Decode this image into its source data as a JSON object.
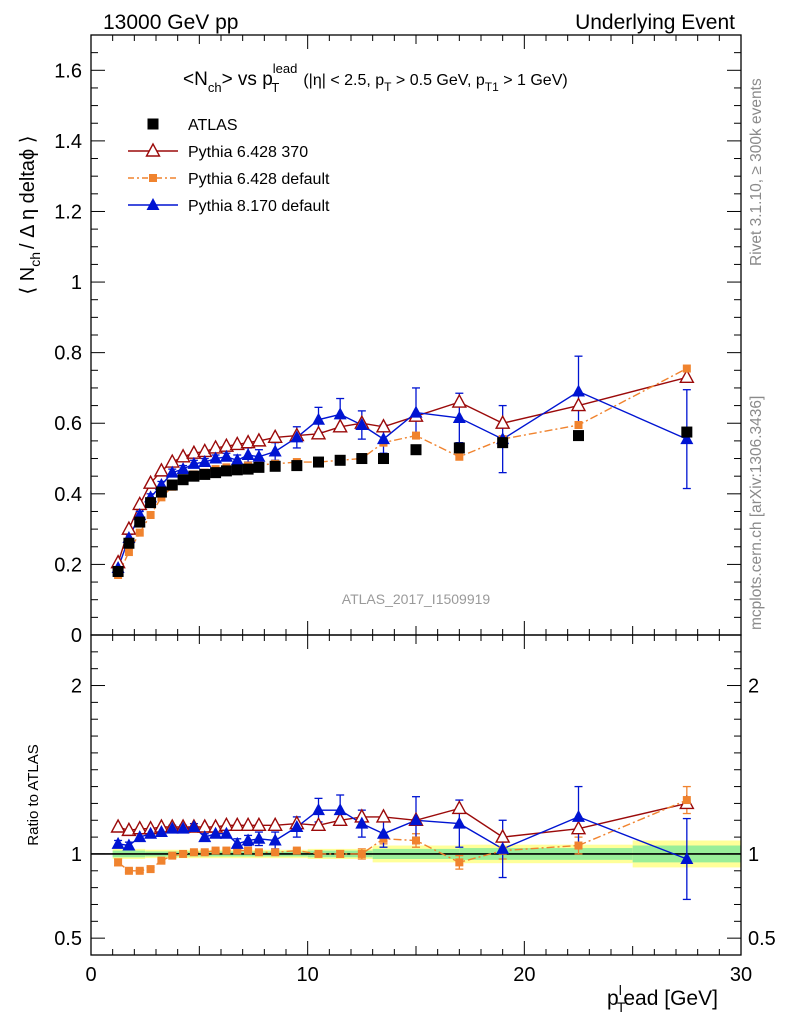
{
  "header": {
    "left": "13000 GeV pp",
    "right": "Underlying Event"
  },
  "side_labels": {
    "rivet": "Rivet 3.1.10, ≥ 300k events",
    "mcplots": "mcplots.cern.ch [arXiv:1306.3436]"
  },
  "watermark": "ATLAS_2017_I1509919",
  "title": {
    "main": "<N",
    "main_sub": "ch",
    "mid": "> vs p",
    "mid_sup": "lead",
    "mid_sub": "T",
    "cuts_a": "(|η| < 2.5, p",
    "cuts_a_sub": "T",
    "cuts_b": " > 0.5 GeV, p",
    "cuts_b_sub": "T1",
    "cuts_c": " > 1 GeV)"
  },
  "yaxis_main": {
    "pre": "⟨ N",
    "sub": "ch",
    "post": "/ Δ η deltaϕ ⟩"
  },
  "yaxis_ratio": "Ratio to ATLAS",
  "xaxis": {
    "pre": "p",
    "sup": "l",
    "sub": "T",
    "post": "ead [GeV]"
  },
  "chart_data": {
    "type": "scatter",
    "xlim": [
      0,
      30
    ],
    "main_ylim": [
      0,
      1.7
    ],
    "ratio_ylim": [
      0.4,
      2.3
    ],
    "main_yticks": [
      "0.2",
      "0.4",
      "0.6",
      "0.8",
      "1",
      "1.2",
      "1.4",
      "1.6"
    ],
    "main_ytick_values": [
      0.2,
      0.4,
      0.6,
      0.8,
      1.0,
      1.2,
      1.4,
      1.6
    ],
    "ratio_yticks": [
      "0.5",
      "1",
      "2"
    ],
    "ratio_ytick_values": [
      0.5,
      1.0,
      2.0
    ],
    "xticks": [
      "0",
      "10",
      "20",
      "30"
    ],
    "xtick_values": [
      0,
      10,
      20,
      30
    ],
    "legend_position": "top-left",
    "series": [
      {
        "name": "ATLAS",
        "style": "data",
        "color": "#000000",
        "x": [
          1.25,
          1.75,
          2.25,
          2.75,
          3.25,
          3.75,
          4.25,
          4.75,
          5.25,
          5.75,
          6.25,
          6.75,
          7.25,
          7.75,
          8.5,
          9.5,
          10.5,
          11.5,
          12.5,
          13.5,
          15.0,
          17.0,
          19.0,
          22.5,
          27.5
        ],
        "y": [
          0.18,
          0.26,
          0.32,
          0.375,
          0.405,
          0.425,
          0.44,
          0.45,
          0.455,
          0.46,
          0.465,
          0.468,
          0.47,
          0.475,
          0.478,
          0.48,
          0.49,
          0.495,
          0.5,
          0.5,
          0.525,
          0.53,
          0.545,
          0.565,
          0.575
        ]
      },
      {
        "name": "Pythia 6.428 370",
        "style": "open-triangle-line",
        "color": "#9b0a0a",
        "x": [
          1.25,
          1.75,
          2.25,
          2.75,
          3.25,
          3.75,
          4.25,
          4.75,
          5.25,
          5.75,
          6.25,
          6.75,
          7.25,
          7.75,
          8.5,
          9.5,
          10.5,
          11.5,
          12.5,
          13.5,
          15.0,
          17.0,
          19.0,
          22.5,
          27.5
        ],
        "y": [
          0.205,
          0.3,
          0.37,
          0.43,
          0.465,
          0.49,
          0.505,
          0.515,
          0.52,
          0.53,
          0.535,
          0.54,
          0.545,
          0.55,
          0.56,
          0.565,
          0.57,
          0.59,
          0.6,
          0.59,
          0.62,
          0.66,
          0.6,
          0.65,
          0.73
        ],
        "ratio": [
          1.16,
          1.14,
          1.15,
          1.15,
          1.16,
          1.16,
          1.16,
          1.16,
          1.16,
          1.16,
          1.17,
          1.17,
          1.17,
          1.17,
          1.17,
          1.18,
          1.17,
          1.2,
          1.22,
          1.22,
          1.2,
          1.27,
          1.1,
          1.15,
          1.3
        ]
      },
      {
        "name": "Pythia 6.428 default",
        "style": "filled-square-dashdot",
        "color": "#f0832e",
        "x": [
          1.25,
          1.75,
          2.25,
          2.75,
          3.25,
          3.75,
          4.25,
          4.75,
          5.25,
          5.75,
          6.25,
          6.75,
          7.25,
          7.75,
          8.5,
          9.5,
          10.5,
          11.5,
          12.5,
          13.5,
          15.0,
          17.0,
          19.0,
          22.5,
          27.5
        ],
        "y": [
          0.17,
          0.235,
          0.29,
          0.34,
          0.39,
          0.42,
          0.44,
          0.455,
          0.46,
          0.47,
          0.475,
          0.478,
          0.48,
          0.482,
          0.485,
          0.49,
          0.49,
          0.495,
          0.5,
          0.545,
          0.565,
          0.505,
          0.555,
          0.595,
          0.755
        ],
        "ratio": [
          0.95,
          0.9,
          0.9,
          0.91,
          0.96,
          0.99,
          1.0,
          1.01,
          1.01,
          1.02,
          1.02,
          1.02,
          1.02,
          1.01,
          1.01,
          1.02,
          1.0,
          1.0,
          1.0,
          1.09,
          1.08,
          0.95,
          1.02,
          1.05,
          1.32
        ],
        "ratio_err": [
          0.02,
          0.01,
          0.01,
          0.01,
          0.01,
          0.01,
          0.01,
          0.01,
          0.01,
          0.01,
          0.01,
          0.01,
          0.01,
          0.01,
          0.01,
          0.01,
          0.01,
          0.02,
          0.03,
          0.03,
          0.04,
          0.04,
          0.05,
          0.05,
          0.08
        ]
      },
      {
        "name": "Pythia 8.170 default",
        "style": "filled-triangle-line",
        "color": "#0014d2",
        "x": [
          1.25,
          1.75,
          2.25,
          2.75,
          3.25,
          3.75,
          4.25,
          4.75,
          5.25,
          5.75,
          6.25,
          6.75,
          7.25,
          7.75,
          8.5,
          9.5,
          10.5,
          11.5,
          12.5,
          13.5,
          15.0,
          17.0,
          19.0,
          22.5,
          27.5
        ],
        "y": [
          0.19,
          0.275,
          0.34,
          0.39,
          0.425,
          0.46,
          0.47,
          0.485,
          0.49,
          0.5,
          0.505,
          0.495,
          0.51,
          0.505,
          0.52,
          0.56,
          0.61,
          0.625,
          0.595,
          0.555,
          0.63,
          0.615,
          0.555,
          0.69,
          0.555
        ],
        "y_err": [
          0.01,
          0.01,
          0.01,
          0.01,
          0.01,
          0.01,
          0.01,
          0.01,
          0.01,
          0.01,
          0.01,
          0.015,
          0.02,
          0.02,
          0.025,
          0.03,
          0.035,
          0.045,
          0.04,
          0.04,
          0.07,
          0.07,
          0.095,
          0.1,
          0.14
        ],
        "ratio": [
          1.06,
          1.05,
          1.1,
          1.12,
          1.13,
          1.15,
          1.15,
          1.16,
          1.1,
          1.12,
          1.12,
          1.06,
          1.08,
          1.09,
          1.08,
          1.16,
          1.26,
          1.26,
          1.18,
          1.12,
          1.2,
          1.18,
          1.03,
          1.22,
          0.97
        ],
        "ratio_err": [
          0.02,
          0.02,
          0.02,
          0.02,
          0.02,
          0.02,
          0.02,
          0.02,
          0.02,
          0.02,
          0.02,
          0.03,
          0.03,
          0.04,
          0.05,
          0.06,
          0.07,
          0.09,
          0.08,
          0.08,
          0.14,
          0.14,
          0.17,
          0.18,
          0.24
        ]
      }
    ],
    "uncertainty_bands": {
      "x_edges": [
        1.0,
        2.5,
        5.0,
        10.0,
        13.0,
        17.0,
        25.0,
        30.0
      ],
      "inner": [
        0.02,
        0.015,
        0.015,
        0.02,
        0.03,
        0.035,
        0.05
      ],
      "outer": [
        0.03,
        0.025,
        0.025,
        0.03,
        0.05,
        0.055,
        0.08
      ]
    }
  }
}
